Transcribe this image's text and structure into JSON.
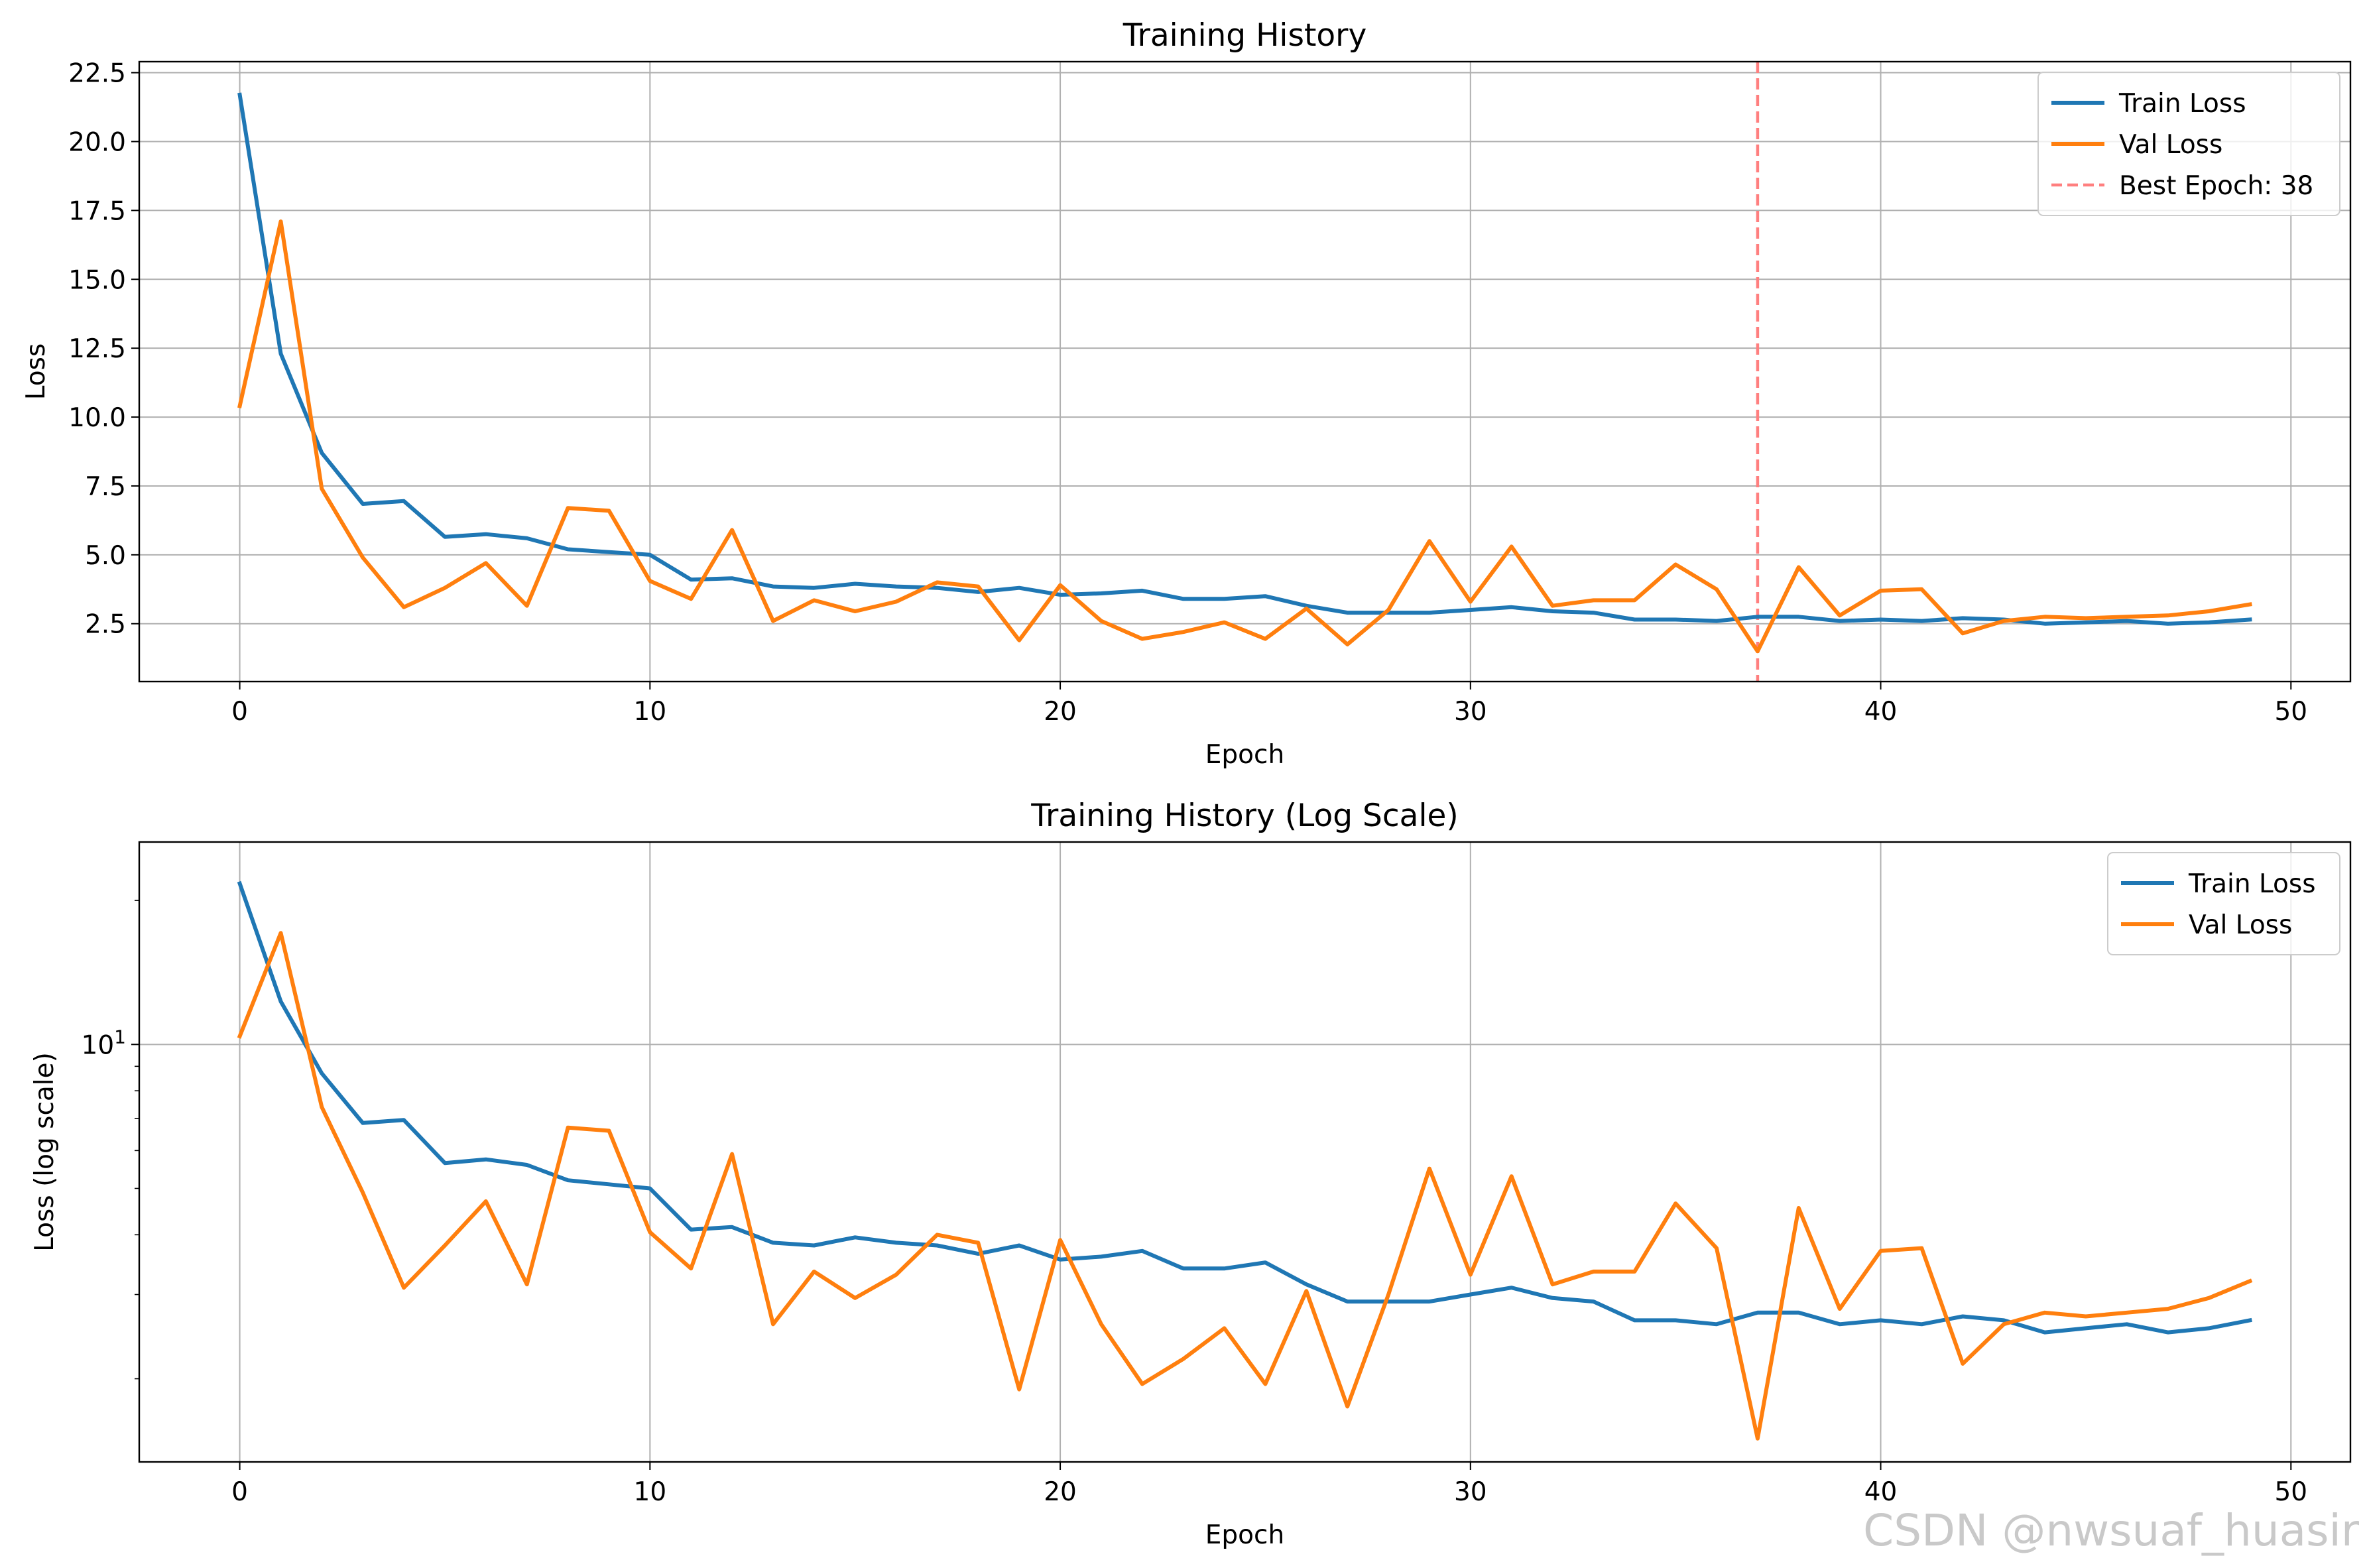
{
  "watermark": "CSDN @nwsuaf_huasir",
  "colors": {
    "train": "#1f77b4",
    "val": "#ff7f0e",
    "best": "#ff7f7f",
    "grid": "#b0b0b0"
  },
  "chart_data": [
    {
      "type": "line",
      "title": "Training History",
      "xlabel": "Epoch",
      "ylabel": "Loss",
      "yscale": "linear",
      "xlim": [
        -2.45,
        51.45
      ],
      "ylim": [
        0.4,
        22.9
      ],
      "xticks": [
        0,
        10,
        20,
        30,
        40,
        50
      ],
      "xtick_labels": [
        "0",
        "10",
        "20",
        "30",
        "40",
        "50"
      ],
      "yticks": [
        2.5,
        5.0,
        7.5,
        10.0,
        12.5,
        15.0,
        17.5,
        20.0,
        22.5
      ],
      "ytick_labels": [
        "2.5",
        "5.0",
        "7.5",
        "10.0",
        "12.5",
        "15.0",
        "17.5",
        "20.0",
        "22.5"
      ],
      "grid": true,
      "legend": "top-right",
      "best_epoch": {
        "x": 37,
        "label": "Best Epoch: 38"
      },
      "series": [
        {
          "name": "Train Loss",
          "color": "#1f77b4",
          "values": [
            21.7,
            12.3,
            8.7,
            6.85,
            6.95,
            5.65,
            5.75,
            5.6,
            5.2,
            5.1,
            5.0,
            4.1,
            4.15,
            3.85,
            3.8,
            3.95,
            3.85,
            3.8,
            3.65,
            3.8,
            3.55,
            3.6,
            3.7,
            3.4,
            3.4,
            3.5,
            3.15,
            2.9,
            2.9,
            2.9,
            3.0,
            3.1,
            2.95,
            2.9,
            2.65,
            2.65,
            2.6,
            2.75,
            2.75,
            2.6,
            2.65,
            2.6,
            2.7,
            2.65,
            2.5,
            2.55,
            2.6,
            2.5,
            2.55,
            2.65
          ]
        },
        {
          "name": "Val Loss",
          "color": "#ff7f0e",
          "values": [
            10.4,
            17.1,
            7.4,
            4.9,
            3.1,
            3.8,
            4.7,
            3.15,
            6.7,
            6.6,
            4.05,
            3.4,
            5.9,
            2.6,
            3.35,
            2.95,
            3.3,
            4.0,
            3.85,
            1.9,
            3.9,
            2.6,
            1.95,
            2.2,
            2.55,
            1.95,
            3.05,
            1.75,
            3.0,
            5.5,
            3.3,
            5.3,
            3.15,
            3.35,
            3.35,
            4.65,
            3.75,
            1.5,
            4.55,
            2.8,
            3.7,
            3.75,
            2.15,
            2.6,
            2.75,
            2.7,
            2.75,
            2.8,
            2.95,
            3.2
          ]
        }
      ]
    },
    {
      "type": "line",
      "title": "Training History (Log Scale)",
      "xlabel": "Epoch",
      "ylabel": "Loss (log scale)",
      "yscale": "log",
      "xlim": [
        -2.45,
        51.45
      ],
      "ylim": [
        1.34,
        26.5
      ],
      "xticks": [
        0,
        10,
        20,
        30,
        40,
        50
      ],
      "xtick_labels": [
        "0",
        "10",
        "20",
        "30",
        "40",
        "50"
      ],
      "yticks": [
        10
      ],
      "ytick_labels": [
        "10¹"
      ],
      "minor_yticks": [
        2,
        3,
        4,
        5,
        6,
        7,
        8,
        9,
        20
      ],
      "grid": true,
      "legend": "top-right",
      "series": [
        {
          "name": "Train Loss",
          "color": "#1f77b4",
          "values": [
            21.7,
            12.3,
            8.7,
            6.85,
            6.95,
            5.65,
            5.75,
            5.6,
            5.2,
            5.1,
            5.0,
            4.1,
            4.15,
            3.85,
            3.8,
            3.95,
            3.85,
            3.8,
            3.65,
            3.8,
            3.55,
            3.6,
            3.7,
            3.4,
            3.4,
            3.5,
            3.15,
            2.9,
            2.9,
            2.9,
            3.0,
            3.1,
            2.95,
            2.9,
            2.65,
            2.65,
            2.6,
            2.75,
            2.75,
            2.6,
            2.65,
            2.6,
            2.7,
            2.65,
            2.5,
            2.55,
            2.6,
            2.5,
            2.55,
            2.65
          ]
        },
        {
          "name": "Val Loss",
          "color": "#ff7f0e",
          "values": [
            10.4,
            17.1,
            7.4,
            4.9,
            3.1,
            3.8,
            4.7,
            3.15,
            6.7,
            6.6,
            4.05,
            3.4,
            5.9,
            2.6,
            3.35,
            2.95,
            3.3,
            4.0,
            3.85,
            1.9,
            3.9,
            2.6,
            1.95,
            2.2,
            2.55,
            1.95,
            3.05,
            1.75,
            3.0,
            5.5,
            3.3,
            5.3,
            3.15,
            3.35,
            3.35,
            4.65,
            3.75,
            1.5,
            4.55,
            2.8,
            3.7,
            3.75,
            2.15,
            2.6,
            2.75,
            2.7,
            2.75,
            2.8,
            2.95,
            3.2
          ]
        }
      ]
    }
  ]
}
